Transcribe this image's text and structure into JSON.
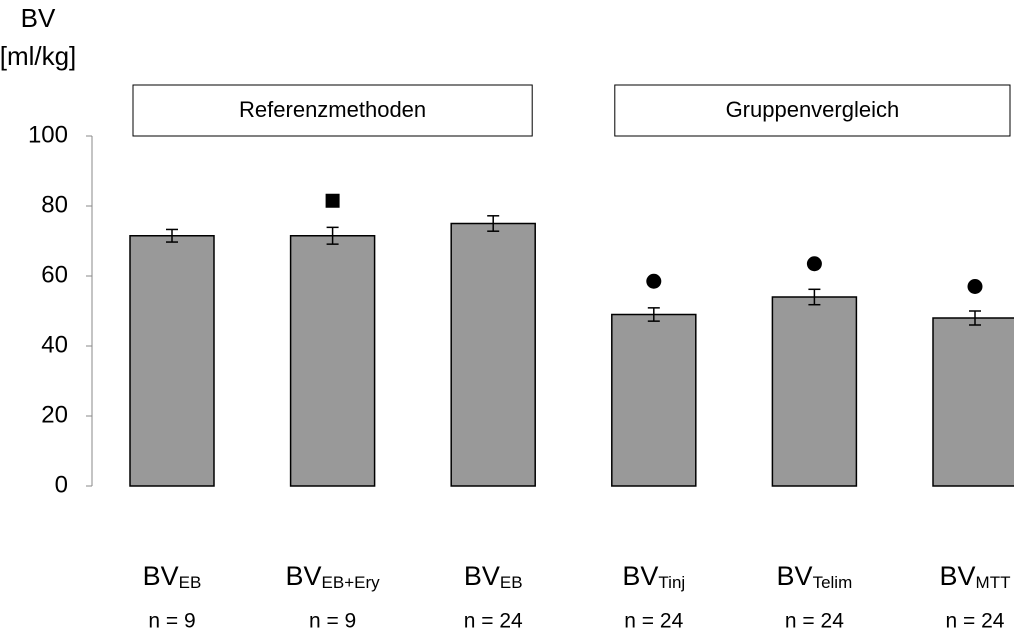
{
  "chart_data": {
    "type": "bar",
    "ylabel": [
      "BV",
      "[ml/kg]"
    ],
    "groups": [
      "Referenzmethoden",
      "Gruppenvergleich"
    ],
    "categories": [
      {
        "text": "BV",
        "sub": "EB"
      },
      {
        "text": "BV",
        "sub": "EB+Ery"
      },
      {
        "text": "BV",
        "sub": "EB"
      },
      {
        "text": "BV",
        "sub": "Tinj"
      },
      {
        "text": "BV",
        "sub": "Telim"
      },
      {
        "text": "BV",
        "sub": "MTT"
      }
    ],
    "n_labels": [
      "n = 9",
      "n = 9",
      "n = 24",
      "n = 24",
      "n = 24",
      "n = 24"
    ],
    "values": [
      71.5,
      71.5,
      75,
      49,
      54,
      48
    ],
    "errors": [
      1.8,
      2.4,
      2.2,
      1.9,
      2.2,
      2
    ],
    "markers": [
      null,
      "square",
      null,
      "circle",
      "circle",
      "circle"
    ],
    "marker_y": [
      null,
      81.5,
      null,
      58.5,
      63.5,
      57
    ],
    "color": "#999999",
    "ylim": [
      0,
      100
    ],
    "yticks": [
      0,
      20,
      40,
      60,
      80,
      100
    ]
  }
}
